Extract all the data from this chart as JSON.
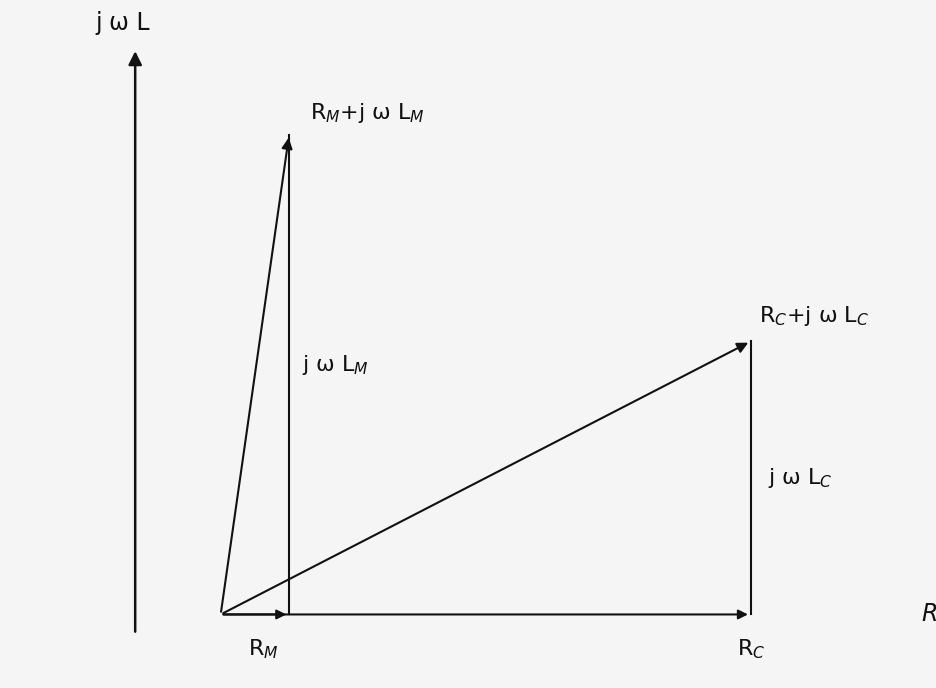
{
  "background_color": "#f5f5f5",
  "fig_width": 9.36,
  "fig_height": 6.88,
  "dpi": 100,
  "xlim": [
    0,
    10
  ],
  "ylim": [
    0,
    10
  ],
  "yaxis_x": 1.5,
  "origin_x": 2.5,
  "origin_y": 1.0,
  "RM": 0.8,
  "LM": 7.2,
  "RC": 6.2,
  "LC": 4.1,
  "arrow_color": "#111111",
  "line_color": "#111111",
  "label_color": "#111111",
  "axis_y_label": "j ω L",
  "axis_x_label": "R",
  "label_RM": "R$_M$",
  "label_LM": "j ω L$_M$",
  "label_ZM": "R$_M$+j ω L$_M$",
  "label_RC": "R$_C$",
  "label_LC": "j ω L$_C$",
  "label_ZC": "R$_C$+j ω L$_C$",
  "font_size_labels": 16,
  "font_size_axis": 17
}
